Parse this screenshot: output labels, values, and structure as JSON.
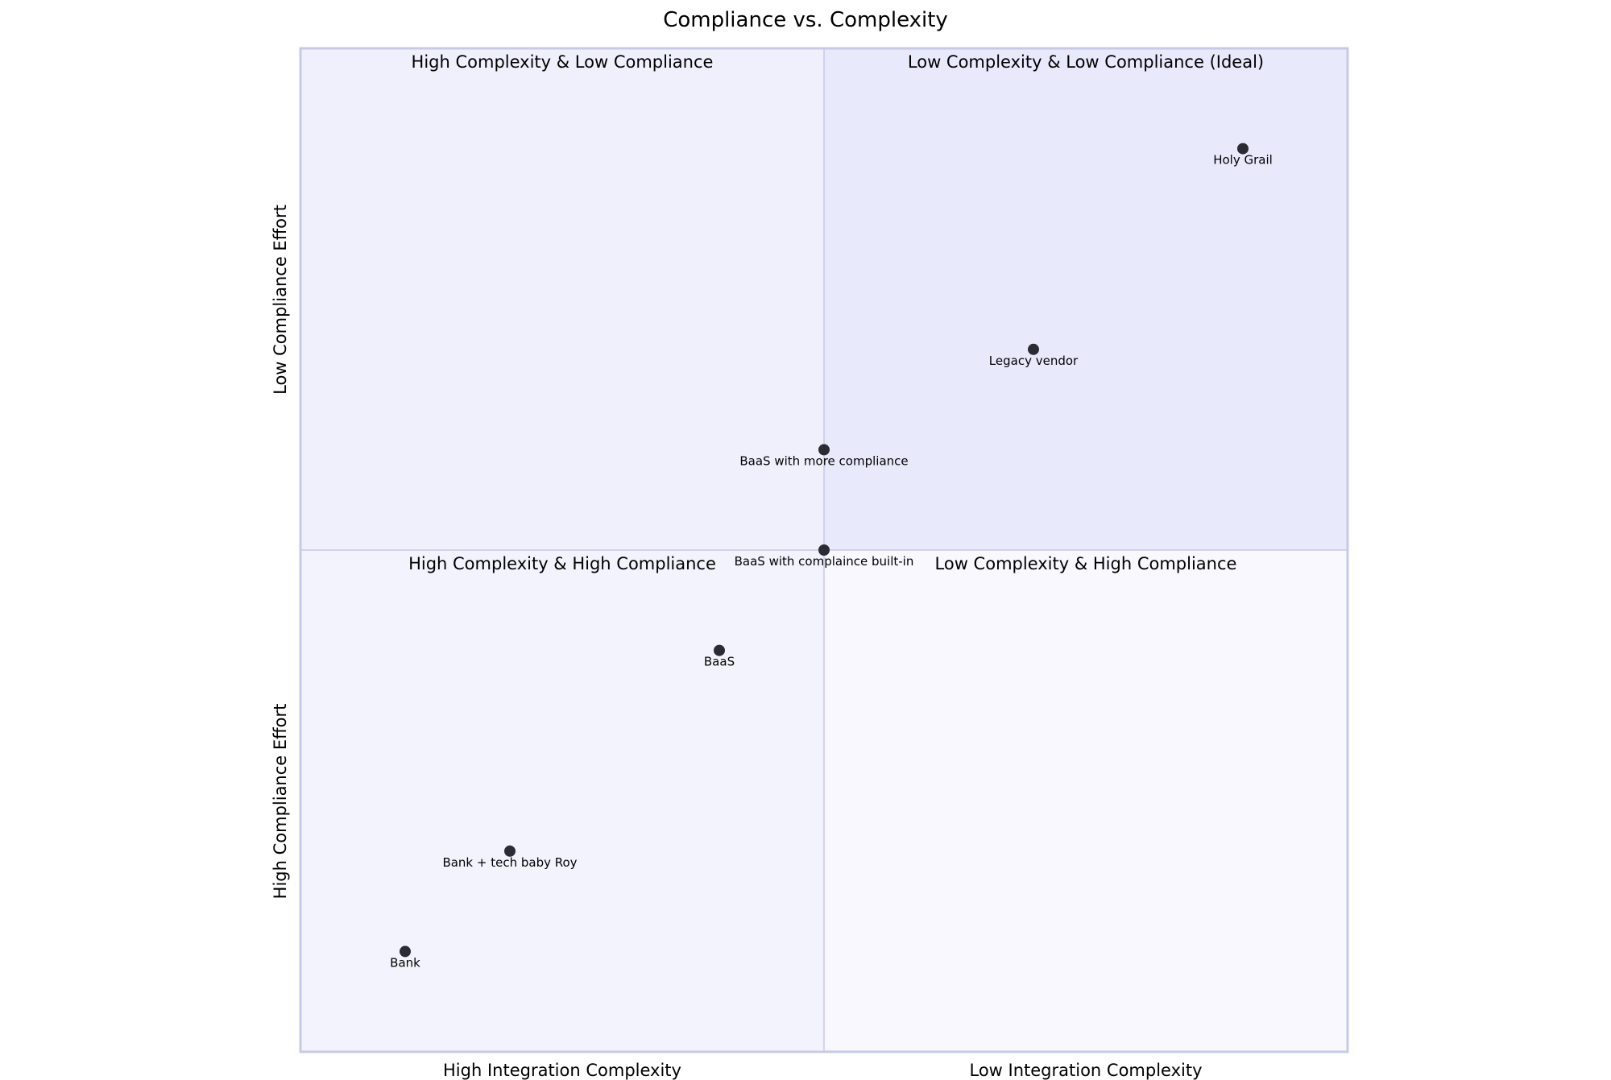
{
  "chart_data": {
    "type": "scatter",
    "title": "Compliance vs. Complexity",
    "x_axis": {
      "left_label": "High Integration Complexity",
      "right_label": "Low Integration Complexity",
      "range": [
        0,
        1
      ]
    },
    "y_axis": {
      "bottom_label": "High Compliance Effort",
      "top_label": "Low Compliance Effort",
      "range": [
        0,
        1
      ]
    },
    "quadrants": {
      "top_left": "High Complexity & Low Compliance",
      "top_right": "Low Complexity & Low Compliance (Ideal)",
      "bottom_left": "High Complexity & High Compliance",
      "bottom_right": "Low Complexity & High Compliance"
    },
    "points": [
      {
        "label": "Holy Grail",
        "x": 0.9,
        "y": 0.9
      },
      {
        "label": "Legacy vendor",
        "x": 0.7,
        "y": 0.7
      },
      {
        "label": "BaaS with more compliance",
        "x": 0.5,
        "y": 0.6
      },
      {
        "label": "BaaS with complaince built-in",
        "x": 0.5,
        "y": 0.5
      },
      {
        "label": "BaaS",
        "x": 0.4,
        "y": 0.4
      },
      {
        "label": "Bank + tech baby Roy",
        "x": 0.2,
        "y": 0.2
      },
      {
        "label": "Bank",
        "x": 0.1,
        "y": 0.1
      }
    ],
    "colors": {
      "top_left_fill": "#f0f0fd",
      "top_right_fill": "#e9e9fc",
      "bottom_left_fill": "#f3f3fd",
      "bottom_right_fill": "#f8f8fe",
      "border": "#c8c8e8",
      "point": "#2b2b33"
    }
  }
}
